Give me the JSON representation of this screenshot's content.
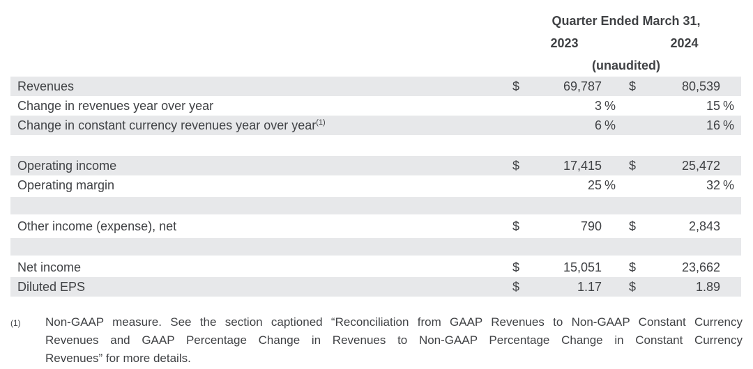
{
  "colors": {
    "row_shade": "#e7e8ea",
    "text": "#404245",
    "background": "#ffffff"
  },
  "header": {
    "title": "Quarter Ended March 31,",
    "col_2023": "2023",
    "col_2024": "2024",
    "unaudited": "(unaudited)"
  },
  "table": {
    "rows": [
      {
        "type": "data",
        "shaded": true,
        "label": "Revenues",
        "d1": "$",
        "v1": "69,787",
        "p1": "",
        "d2": "$",
        "v2": "80,539",
        "p2": ""
      },
      {
        "type": "data",
        "shaded": false,
        "label": "Change in revenues year over year",
        "d1": "",
        "v1": "3",
        "p1": "%",
        "d2": "",
        "v2": "15",
        "p2": "%"
      },
      {
        "type": "data",
        "shaded": true,
        "label": "Change in constant currency revenues year over year",
        "sup": "(1)",
        "d1": "",
        "v1": "6",
        "p1": "%",
        "d2": "",
        "v2": "16",
        "p2": "%"
      },
      {
        "type": "spacer",
        "shaded": false
      },
      {
        "type": "data",
        "shaded": true,
        "label": "Operating income",
        "d1": "$",
        "v1": "17,415",
        "p1": "",
        "d2": "$",
        "v2": "25,472",
        "p2": ""
      },
      {
        "type": "data",
        "shaded": false,
        "label": "Operating margin",
        "d1": "",
        "v1": "25",
        "p1": "%",
        "d2": "",
        "v2": "32",
        "p2": "%"
      },
      {
        "type": "spacer",
        "shaded": true
      },
      {
        "type": "data",
        "shaded": false,
        "label": "Other income (expense), net",
        "d1": "$",
        "v1": "790",
        "p1": "",
        "d2": "$",
        "v2": "2,843",
        "p2": ""
      },
      {
        "type": "spacer",
        "shaded": true
      },
      {
        "type": "data",
        "shaded": false,
        "label": "Net income",
        "d1": "$",
        "v1": "15,051",
        "p1": "",
        "d2": "$",
        "v2": "23,662",
        "p2": ""
      },
      {
        "type": "data",
        "shaded": true,
        "label": "Diluted EPS",
        "d1": "$",
        "v1": "1.17",
        "p1": "",
        "d2": "$",
        "v2": "1.89",
        "p2": ""
      }
    ]
  },
  "footnote": {
    "marker": "(1)",
    "lines": [
      "Non-GAAP measure. See the section captioned “Reconciliation from GAAP Revenues to Non-GAAP Constant Currency",
      "Revenues and GAAP Percentage Change in Revenues to Non-GAAP Percentage Change in Constant Currency",
      "Revenues” for more details."
    ],
    "full_text": "Non-GAAP measure. See the section captioned “Reconciliation from GAAP Revenues to Non-GAAP Constant Currency Revenues and GAAP Percentage Change in Revenues to Non-GAAP Percentage Change in Constant Currency Revenues” for more details."
  }
}
